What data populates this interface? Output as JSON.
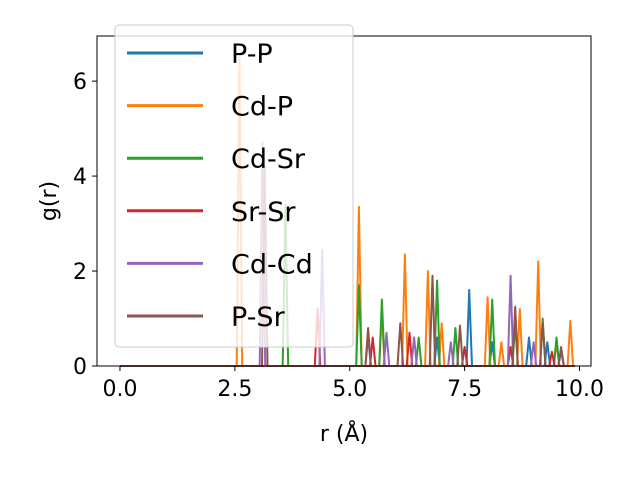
{
  "chart_data": {
    "type": "line",
    "xlabel": "r (Å)",
    "ylabel": "g(r)",
    "xlim": [
      -0.5,
      10.25
    ],
    "ylim": [
      0,
      6.95
    ],
    "xticks": [
      0.0,
      2.5,
      5.0,
      7.5,
      10.0
    ],
    "xtick_labels": [
      "0.0",
      "2.5",
      "5.0",
      "7.5",
      "10.0"
    ],
    "yticks": [
      0,
      2,
      4,
      6
    ],
    "ytick_labels": [
      "0",
      "2",
      "4",
      "6"
    ],
    "grid": false,
    "legend_position": "upper-left",
    "series": [
      {
        "name": "P-P",
        "color": "#1f77b4",
        "peaks": [
          [
            6.9,
            0.6
          ],
          [
            7.6,
            1.6
          ],
          [
            8.1,
            0.5
          ],
          [
            8.9,
            0.6
          ],
          [
            9.3,
            0.5
          ]
        ]
      },
      {
        "name": "Cd-P",
        "color": "#ff7f0e",
        "peaks": [
          [
            2.6,
            6.5
          ],
          [
            5.2,
            3.35
          ],
          [
            5.7,
            1.1
          ],
          [
            6.2,
            2.35
          ],
          [
            6.7,
            2.0
          ],
          [
            7.0,
            0.9
          ],
          [
            8.0,
            1.45
          ],
          [
            8.3,
            0.5
          ],
          [
            8.7,
            1.2
          ],
          [
            9.1,
            2.2
          ],
          [
            9.5,
            0.5
          ],
          [
            9.8,
            0.95
          ]
        ]
      },
      {
        "name": "Cd-Sr",
        "color": "#2ca02c",
        "peaks": [
          [
            3.6,
            3.4
          ],
          [
            5.2,
            1.7
          ],
          [
            5.7,
            1.4
          ],
          [
            6.5,
            0.6
          ],
          [
            6.9,
            1.8
          ],
          [
            7.3,
            0.8
          ],
          [
            8.1,
            1.4
          ],
          [
            8.6,
            0.9
          ],
          [
            9.2,
            1.0
          ],
          [
            9.5,
            0.6
          ]
        ]
      },
      {
        "name": "Sr-Sr",
        "color": "#d62728",
        "peaks": [
          [
            4.3,
            1.2
          ],
          [
            5.5,
            0.6
          ],
          [
            6.3,
            0.7
          ],
          [
            7.5,
            0.4
          ],
          [
            8.5,
            0.4
          ],
          [
            9.4,
            0.3
          ]
        ]
      },
      {
        "name": "Cd-Cd",
        "color": "#9467bd",
        "peaks": [
          [
            3.1,
            4.7
          ],
          [
            4.4,
            2.45
          ],
          [
            5.4,
            0.6
          ],
          [
            5.8,
            0.7
          ],
          [
            6.4,
            0.6
          ],
          [
            7.2,
            0.5
          ],
          [
            8.5,
            1.9
          ],
          [
            9.0,
            0.5
          ],
          [
            9.6,
            0.3
          ]
        ]
      },
      {
        "name": "P-Sr",
        "color": "#8c564b",
        "peaks": [
          [
            3.15,
            4.2
          ],
          [
            5.4,
            0.8
          ],
          [
            6.1,
            0.9
          ],
          [
            6.8,
            1.9
          ],
          [
            7.4,
            0.85
          ],
          [
            8.6,
            1.25
          ],
          [
            9.2,
            0.9
          ],
          [
            9.6,
            0.4
          ]
        ]
      }
    ]
  }
}
